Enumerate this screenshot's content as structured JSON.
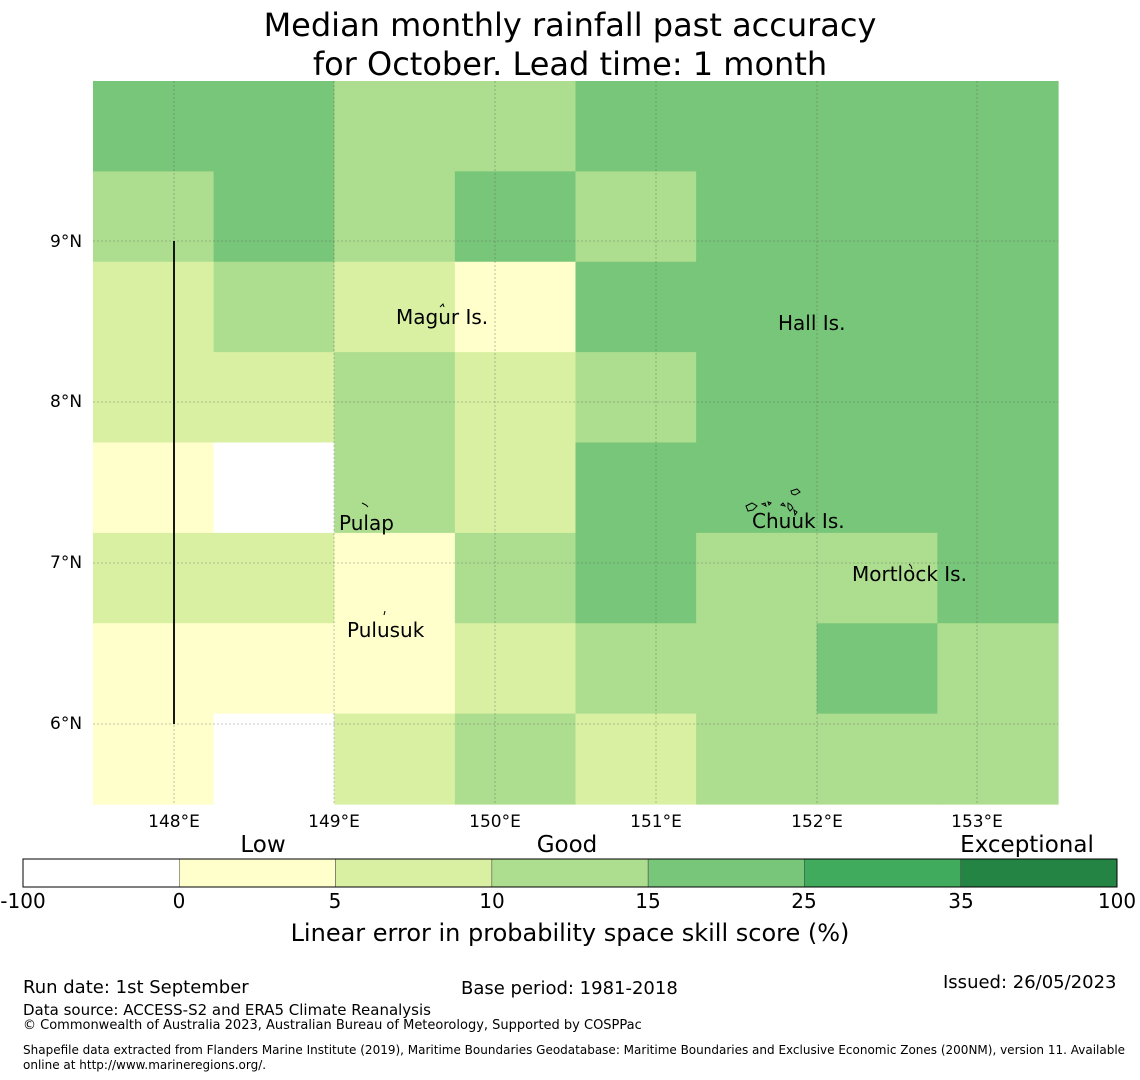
{
  "title": {
    "line1": "Median monthly rainfall past accuracy",
    "line2": "for October. Lead time: 1 month"
  },
  "map": {
    "lat_ticks": [
      "9°N",
      "8°N",
      "7°N",
      "6°N"
    ],
    "lon_ticks": [
      "148°E",
      "149°E",
      "150°E",
      "151°E",
      "152°E",
      "153°E"
    ],
    "places": [
      {
        "id": "magur",
        "name": "Magur Is."
      },
      {
        "id": "hall",
        "name": "Hall Is."
      },
      {
        "id": "pulap",
        "name": "Pulap"
      },
      {
        "id": "chuuk",
        "name": "Chuuk Is."
      },
      {
        "id": "mortlock",
        "name": "Mortlock Is."
      },
      {
        "id": "pulusuk",
        "name": "Pulusuk"
      }
    ],
    "skill_grid": {
      "cols": 8,
      "rows": 8,
      "levels": [
        [
          4,
          4,
          3,
          3,
          4,
          4,
          4,
          4
        ],
        [
          3,
          4,
          3,
          4,
          3,
          4,
          4,
          4
        ],
        [
          2,
          3,
          2,
          1,
          4,
          4,
          4,
          4
        ],
        [
          2,
          2,
          3,
          2,
          3,
          4,
          4,
          4
        ],
        [
          1,
          0,
          3,
          2,
          4,
          4,
          4,
          4
        ],
        [
          2,
          2,
          1,
          3,
          4,
          3,
          3,
          4
        ],
        [
          1,
          1,
          1,
          2,
          3,
          3,
          4,
          3
        ],
        [
          1,
          0,
          2,
          3,
          2,
          3,
          3,
          3
        ]
      ]
    }
  },
  "colorbar": {
    "categories": [
      "Low",
      "Good",
      "Exceptional"
    ],
    "ticks": [
      "-100",
      "0",
      "5",
      "10",
      "15",
      "25",
      "35",
      "100"
    ],
    "colors": [
      "#ffffff",
      "#ffffcc",
      "#d9f0a3",
      "#addd8e",
      "#78c679",
      "#41ab5d",
      "#238443"
    ],
    "label": "Linear error in probability space skill score (%)"
  },
  "footer": {
    "run_date": "Run date: 1st September",
    "base_period": "Base period: 1981-2018",
    "issued": "Issued: 26/05/2023",
    "data_source": "Data source: ACCESS-S2 and ERA5 Climate Reanalysis",
    "copyright": "© Commonwealth of Australia 2023, Australian Bureau of Meteorology, Supported by COSPPac",
    "shapefile_line1": "Shapefile data extracted from Flanders Marine Institute (2019), Maritime Boundaries Geodatabase: Maritime Boundaries and Exclusive Economic Zones (200NM), version 11. Available",
    "shapefile_line2": "online at http://www.marineregions.org/."
  }
}
